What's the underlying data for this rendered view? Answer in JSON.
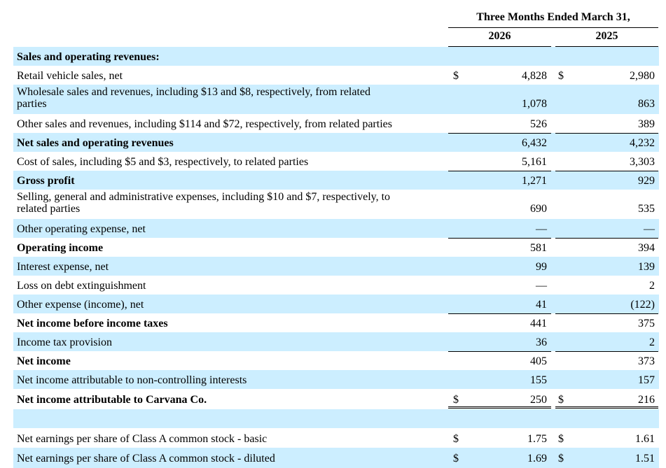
{
  "header": {
    "period": "Three Months Ended March 31,",
    "years": [
      "2026",
      "2025"
    ]
  },
  "colors": {
    "shade": "#cceeff"
  },
  "rows": [
    {
      "label": "Sales and operating revenues:",
      "bold": true,
      "shaded": true,
      "v1": "",
      "v2": ""
    },
    {
      "label": "Retail vehicle sales, net",
      "bold": false,
      "shaded": false,
      "d1": "$",
      "v1": "4,828",
      "d2": "$",
      "v2": "2,980"
    },
    {
      "label": "Wholesale sales and revenues, including $13 and $8, respectively, from related",
      "label2": "parties",
      "bold": false,
      "shaded": true,
      "v1": "1,078",
      "v2": "863"
    },
    {
      "label": "Other sales and revenues, including $114 and $72, respectively, from related parties",
      "bold": false,
      "shaded": false,
      "v1": "526",
      "v2": "389"
    },
    {
      "label": "Net sales and operating revenues",
      "bold": true,
      "shaded": true,
      "v1": "6,432",
      "v2": "4,232"
    },
    {
      "label": "Cost of sales, including $5 and $3, respectively, to related parties",
      "bold": false,
      "shaded": false,
      "v1": "5,161",
      "v2": "3,303"
    },
    {
      "label": "Gross profit",
      "bold": true,
      "shaded": true,
      "v1": "1,271",
      "v2": "929"
    },
    {
      "label": "Selling, general and administrative expenses, including $10 and $7, respectively, to",
      "label2": "related parties",
      "bold": false,
      "shaded": false,
      "v1": "690",
      "v2": "535"
    },
    {
      "label": "Other operating expense, net",
      "bold": false,
      "shaded": true,
      "v1": "—",
      "v2": "—"
    },
    {
      "label": "Operating income",
      "bold": true,
      "shaded": false,
      "v1": "581",
      "v2": "394"
    },
    {
      "label": "Interest expense, net",
      "bold": false,
      "shaded": true,
      "v1": "99",
      "v2": "139"
    },
    {
      "label": "Loss on debt extinguishment",
      "bold": false,
      "shaded": false,
      "v1": "—",
      "v2": "2"
    },
    {
      "label": "Other expense (income), net",
      "bold": false,
      "shaded": true,
      "v1": "41",
      "v2": "(122)"
    },
    {
      "label": "Net income before income taxes",
      "bold": true,
      "shaded": false,
      "v1": "441",
      "v2": "375"
    },
    {
      "label": "Income tax provision",
      "bold": false,
      "shaded": true,
      "v1": "36",
      "v2": "2"
    },
    {
      "label": "Net income",
      "bold": true,
      "shaded": false,
      "v1": "405",
      "v2": "373"
    },
    {
      "label": "Net income attributable to non-controlling interests",
      "bold": false,
      "shaded": true,
      "v1": "155",
      "v2": "157"
    },
    {
      "label": "Net income attributable to Carvana Co.",
      "bold": true,
      "shaded": false,
      "d1": "$",
      "v1": "250",
      "d2": "$",
      "v2": "216"
    },
    {
      "label": "",
      "bold": false,
      "shaded": true,
      "v1": "",
      "v2": ""
    },
    {
      "label": "Net earnings per share of Class A common stock - basic",
      "bold": false,
      "shaded": false,
      "d1": "$",
      "v1": "1.75",
      "d2": "$",
      "v2": "1.61"
    },
    {
      "label": "Net earnings per share of Class A common stock - diluted",
      "bold": false,
      "shaded": true,
      "d1": "$",
      "v1": "1.69",
      "d2": "$",
      "v2": "1.51"
    }
  ]
}
